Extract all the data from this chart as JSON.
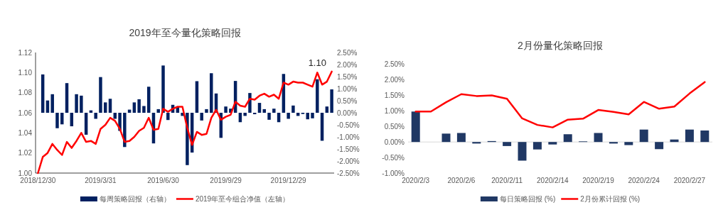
{
  "chart_data": [
    {
      "type": "bar",
      "title": "2019年至今量化策略回报",
      "categories": [
        "2018/12/30",
        null,
        null,
        null,
        null,
        null,
        null,
        null,
        null,
        null,
        null,
        null,
        null,
        "2019/3/31",
        null,
        null,
        null,
        null,
        null,
        null,
        null,
        null,
        null,
        null,
        null,
        null,
        "2019/6/30",
        null,
        null,
        null,
        null,
        null,
        null,
        null,
        null,
        null,
        null,
        null,
        null,
        "2019/9/29",
        null,
        null,
        null,
        null,
        null,
        null,
        null,
        null,
        null,
        null,
        null,
        null,
        "2019/12/29",
        null,
        null,
        null,
        null,
        null,
        null,
        null,
        null,
        null
      ],
      "series": [
        {
          "name": "每周策略回报（右轴）",
          "axis": "y2",
          "color": "#002060",
          "values": [
            null,
            1.59,
            0.51,
            0.77,
            -0.64,
            -0.48,
            1.23,
            -0.56,
            0.77,
            0.71,
            -0.91,
            0.1,
            -0.25,
            1.48,
            0.43,
            0.58,
            -0.25,
            -0.75,
            -1.42,
            0.13,
            0.43,
            0.56,
            0.28,
            1.08,
            -1.27,
            0.15,
            1.96,
            -0.3,
            0.33,
            0.25,
            -0.13,
            -2.17,
            -1.65,
            1.31,
            -0.32,
            0.15,
            1.64,
            0.8,
            -1.04,
            0.26,
            0.17,
            1.32,
            -0.39,
            -0.13,
            0.82,
            -0.06,
            0.41,
            0.15,
            -0.29,
            0.17,
            -0.39,
            1.61,
            -0.25,
            0.3,
            -0.13,
            -0.05,
            -0.27,
            -0.23,
            1.39,
            -1.16,
            0.26,
            0.97
          ]
        },
        {
          "name": "2019年至今组合净值（左轴）",
          "type": "line",
          "color": "#ff0000",
          "values": [
            1.0,
            1.016,
            1.02,
            1.029,
            1.023,
            1.018,
            1.031,
            1.025,
            1.032,
            1.04,
            1.031,
            1.032,
            1.029,
            1.044,
            1.048,
            1.055,
            1.052,
            1.044,
            1.031,
            1.032,
            1.036,
            1.042,
            1.045,
            1.055,
            1.043,
            1.044,
            1.064,
            1.061,
            1.064,
            1.066,
            1.066,
            1.045,
            1.028,
            1.041,
            1.038,
            1.039,
            1.055,
            1.063,
            1.053,
            1.056,
            1.058,
            1.071,
            1.067,
            1.066,
            1.074,
            1.073,
            1.077,
            1.079,
            1.076,
            1.078,
            1.074,
            1.09,
            1.088,
            1.091,
            1.09,
            1.09,
            1.088,
            1.086,
            1.1,
            1.088,
            1.091,
            1.101
          ]
        }
      ],
      "ylim": [
        1.0,
        1.12
      ],
      "yticks": [
        {
          "value": 1.0,
          "label": "1.00"
        },
        {
          "value": 1.02,
          "label": "1.02"
        },
        {
          "value": 1.04,
          "label": "1.04"
        },
        {
          "value": 1.06,
          "label": "1.06"
        },
        {
          "value": 1.08,
          "label": "1.08"
        },
        {
          "value": 1.1,
          "label": "1.10"
        },
        {
          "value": 1.12,
          "label": "1.12"
        }
      ],
      "y2lim": [
        -2.5,
        2.5
      ],
      "y2ticks": [
        {
          "value": -2.5,
          "label": "-2.50%"
        },
        {
          "value": -2,
          "label": "-2.00%"
        },
        {
          "value": -1.5,
          "label": "-1.50%"
        },
        {
          "value": -1,
          "label": "-1.00%"
        },
        {
          "value": -0.5,
          "label": "-0.50%"
        },
        {
          "value": 0,
          "label": "0.00%"
        },
        {
          "value": 0.5,
          "label": "0.50%"
        },
        {
          "value": 1,
          "label": "1.00%"
        },
        {
          "value": 1.5,
          "label": "1.50%"
        },
        {
          "value": 2,
          "label": "2.00%"
        },
        {
          "value": 2.5,
          "label": "2.50%"
        }
      ],
      "annotations": [
        {
          "text": "1.10",
          "y": 1.1
        }
      ],
      "legend": "bottom"
    },
    {
      "type": "bar",
      "title": "2月份量化策略回报",
      "categories": [
        "2020/2/3",
        null,
        null,
        "2020/2/6",
        null,
        null,
        "2020/2/11",
        null,
        null,
        "2020/2/14",
        null,
        null,
        "2020/2/19",
        null,
        null,
        "2020/2/24",
        null,
        null,
        "2020/2/27",
        null
      ],
      "series": [
        {
          "name": "每日策略回报 (%)",
          "color": "#203864",
          "values": [
            0.98,
            0,
            0.27,
            0.29,
            -0.05,
            0.03,
            -0.13,
            -0.6,
            -0.24,
            -0.08,
            0.25,
            0.02,
            0.29,
            -0.05,
            -0.1,
            0.4,
            -0.23,
            0.08,
            0.4,
            0.37
          ]
        },
        {
          "name": "2月份累计回报 (%)",
          "type": "line",
          "color": "#ff0000",
          "values": [
            0.98,
            0.98,
            1.28,
            1.54,
            1.48,
            1.5,
            1.39,
            0.76,
            0.55,
            0.47,
            0.72,
            0.75,
            1.03,
            0.97,
            0.89,
            1.29,
            1.07,
            1.14,
            1.56,
            1.93
          ]
        }
      ],
      "ylim": [
        -1,
        2.5
      ],
      "yticks": [
        {
          "value": -1,
          "label": "-1.00%"
        },
        {
          "value": -0.5,
          "label": "-0.50%"
        },
        {
          "value": 0,
          "label": "0.00%"
        },
        {
          "value": 0.5,
          "label": "0.50%"
        },
        {
          "value": 1,
          "label": "1.00%"
        },
        {
          "value": 1.5,
          "label": "1.50%"
        },
        {
          "value": 2,
          "label": "2.00%"
        },
        {
          "value": 2.5,
          "label": "2.50%"
        }
      ],
      "legend": "bottom"
    }
  ]
}
